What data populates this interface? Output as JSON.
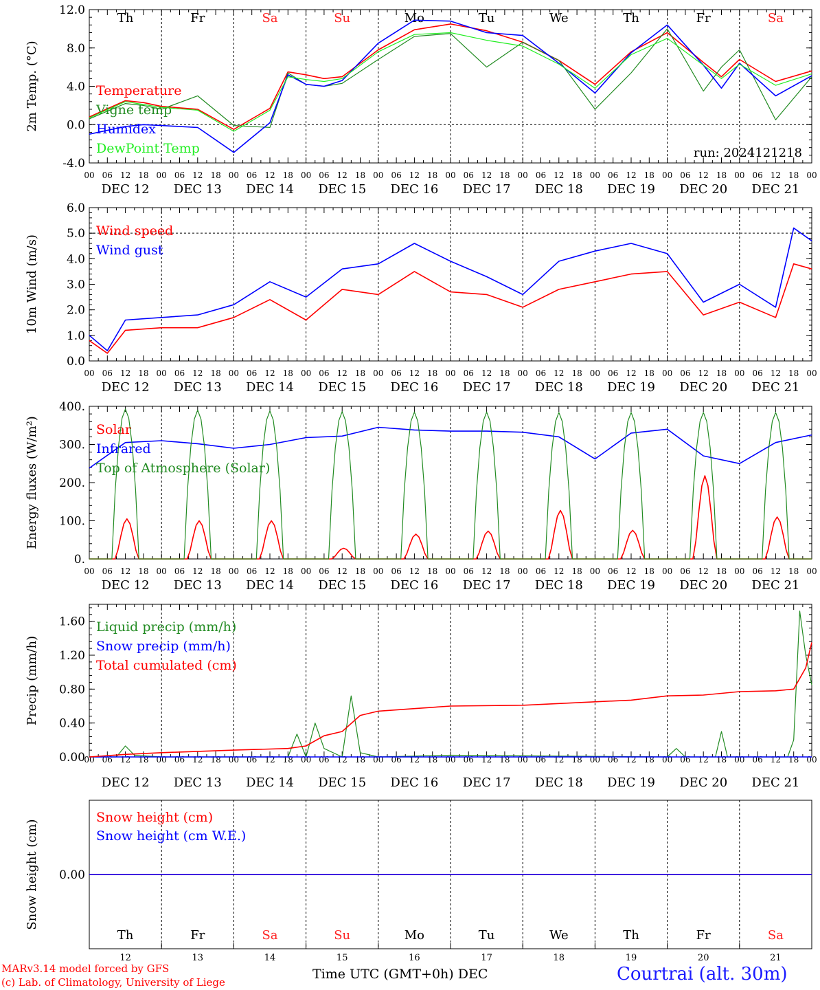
{
  "header": {
    "run_label": "run: 2024121218"
  },
  "footer": {
    "model_credit": "MARv3.14 model forced by GFS",
    "lab_credit": "(c) Lab. of Climatology, University of Liege",
    "time_axis_label": "Time UTC (GMT+0h) DEC",
    "station": "Courtrai (alt. 30m)"
  },
  "colors": {
    "red": "#ff0000",
    "blue": "#0000ff",
    "green": "#228b22",
    "light_green": "#22ee22",
    "weekend": "#ff2020"
  },
  "axis_common": {
    "hour_ticks": [
      "00",
      "06",
      "12",
      "18"
    ],
    "date_labels": [
      "DEC 12",
      "DEC 13",
      "DEC 14",
      "DEC 15",
      "DEC 16",
      "DEC 17",
      "DEC 18",
      "DEC 19",
      "DEC 20",
      "DEC 21"
    ],
    "weekdays": [
      "Th",
      "Fr",
      "Sa",
      "Su",
      "Mo",
      "Tu",
      "We",
      "Th",
      "Fr",
      "Sa"
    ],
    "weekend_flags": [
      false,
      false,
      true,
      true,
      false,
      false,
      false,
      false,
      false,
      true
    ],
    "day_numbers": [
      "12",
      "13",
      "14",
      "15",
      "16",
      "17",
      "18",
      "19",
      "20",
      "21"
    ],
    "x_range_hours": [
      0,
      240
    ]
  },
  "chart_data": [
    {
      "type": "line",
      "ylabel": "2m Temp. (°C)",
      "ylim": [
        -4,
        12
      ],
      "yticks": [
        "-4.0",
        "0.0",
        "4.0",
        "8.0",
        "12.0"
      ],
      "ytick_values": [
        -4,
        0,
        4,
        8,
        12
      ],
      "dashed_y": [
        0
      ],
      "legend_placement": "left",
      "x_hours": [
        0,
        12,
        18,
        24,
        36,
        48,
        60,
        66,
        72,
        78,
        84,
        96,
        108,
        120,
        132,
        144,
        156,
        168,
        180,
        192,
        204,
        210,
        216,
        228,
        240
      ],
      "series": [
        {
          "name": "Temperature",
          "color": "red",
          "values": [
            0.8,
            2.5,
            2.3,
            1.9,
            1.6,
            -0.5,
            1.7,
            5.5,
            5.2,
            4.8,
            5.0,
            7.8,
            9.9,
            10.5,
            9.8,
            8.6,
            6.7,
            4.2,
            7.6,
            9.6,
            6.5,
            5.0,
            6.8,
            4.5,
            5.6
          ]
        },
        {
          "name": "Vigne temp",
          "color": "green",
          "values": [
            0.6,
            2.2,
            2.0,
            1.6,
            3.0,
            -0.1,
            -0.3,
            5.4,
            4.2,
            4.0,
            4.3,
            6.8,
            9.2,
            9.5,
            6.0,
            8.6,
            6.7,
            1.6,
            5.4,
            10.0,
            3.5,
            6.0,
            7.8,
            0.5,
            5.0
          ]
        },
        {
          "name": "Humidex",
          "color": "blue",
          "values": [
            -1.0,
            -0.2,
            0.0,
            -0.1,
            -0.3,
            -2.9,
            0.2,
            5.2,
            4.2,
            4.0,
            4.6,
            8.5,
            10.9,
            10.8,
            9.6,
            9.3,
            6.4,
            3.3,
            7.5,
            10.4,
            6.2,
            3.8,
            6.4,
            3.0,
            5.1
          ]
        },
        {
          "name": "DewPoint Temp",
          "color": "light_green",
          "values": [
            0.7,
            2.4,
            2.1,
            1.8,
            1.5,
            -0.7,
            1.5,
            5.0,
            4.7,
            4.5,
            4.8,
            7.6,
            9.4,
            9.6,
            8.8,
            8.2,
            6.3,
            3.8,
            7.3,
            9.0,
            6.2,
            4.8,
            6.3,
            4.1,
            5.3
          ]
        }
      ]
    },
    {
      "type": "line",
      "ylabel": "10m Wind (m/s)",
      "ylim": [
        0,
        6
      ],
      "yticks": [
        "0.0",
        "1.0",
        "2.0",
        "3.0",
        "4.0",
        "5.0",
        "6.0"
      ],
      "ytick_values": [
        0,
        1,
        2,
        3,
        4,
        5,
        6
      ],
      "dashed_y": [
        5
      ],
      "legend_placement": "left",
      "x_hours": [
        0,
        6,
        12,
        24,
        36,
        48,
        60,
        72,
        84,
        96,
        108,
        120,
        132,
        144,
        156,
        168,
        180,
        192,
        204,
        216,
        228,
        234,
        240
      ],
      "series": [
        {
          "name": "Wind speed",
          "color": "red",
          "values": [
            0.8,
            0.3,
            1.2,
            1.3,
            1.3,
            1.7,
            2.4,
            1.6,
            2.8,
            2.6,
            3.5,
            2.7,
            2.6,
            2.1,
            2.8,
            3.1,
            3.4,
            3.5,
            1.8,
            2.3,
            1.7,
            3.8,
            3.6
          ]
        },
        {
          "name": "Wind gust",
          "color": "blue",
          "values": [
            1.0,
            0.4,
            1.6,
            1.7,
            1.8,
            2.2,
            3.1,
            2.5,
            3.6,
            3.8,
            4.6,
            3.9,
            3.3,
            2.6,
            3.9,
            4.3,
            4.6,
            4.2,
            2.3,
            3.0,
            2.1,
            5.2,
            4.7
          ]
        }
      ]
    },
    {
      "type": "line",
      "ylabel": "Energy fluxes (W/m²)",
      "ylim": [
        0,
        400
      ],
      "yticks": [
        "0.",
        "100.",
        "200.",
        "300.",
        "400."
      ],
      "ytick_values": [
        0,
        100,
        200,
        300,
        400
      ],
      "dashed_y": [],
      "legend_placement": "left",
      "daily_peaks": {
        "solar": [
          105,
          100,
          100,
          28,
          65,
          73,
          127,
          75,
          218,
          110
        ],
        "toa_solar": [
          393,
          390,
          388,
          386,
          385,
          385,
          384,
          384,
          384,
          384
        ]
      },
      "series": [
        {
          "name": "Solar",
          "color": "red",
          "x_hours": [],
          "values": []
        },
        {
          "name": "Infrared",
          "color": "blue",
          "x_hours": [
            0,
            12,
            24,
            36,
            48,
            60,
            72,
            84,
            96,
            108,
            120,
            132,
            144,
            156,
            168,
            180,
            192,
            204,
            216,
            228,
            240
          ],
          "values": [
            238,
            305,
            310,
            302,
            290,
            300,
            318,
            322,
            345,
            338,
            335,
            335,
            332,
            320,
            262,
            330,
            340,
            270,
            250,
            305,
            325
          ]
        },
        {
          "name": "Top of Atmosphere (Solar)",
          "color": "green",
          "x_hours": [],
          "values": []
        }
      ]
    },
    {
      "type": "line",
      "ylabel": "Precip (mm/h)",
      "ylim": [
        0,
        1.8
      ],
      "yticks": [
        "0.00",
        "0.40",
        "0.80",
        "1.20",
        "1.60"
      ],
      "ytick_values": [
        0,
        0.4,
        0.8,
        1.2,
        1.6
      ],
      "dashed_y": [],
      "legend_placement": "left",
      "series": [
        {
          "name": "Liquid precip (mm/h)",
          "color": "green",
          "x_hours": [
            0,
            9,
            12,
            15,
            24,
            60,
            66,
            69,
            72,
            75,
            78,
            84,
            87,
            90,
            96,
            120,
            192,
            195,
            198,
            208,
            210,
            212,
            232,
            234,
            236,
            238,
            240
          ],
          "values": [
            0,
            0,
            0.13,
            0.02,
            0,
            0,
            0,
            0.27,
            0,
            0.4,
            0.1,
            0,
            0.72,
            0.05,
            0,
            0.02,
            0,
            0.1,
            0,
            0,
            0.3,
            0,
            0,
            0.2,
            1.72,
            1.2,
            0.85
          ]
        },
        {
          "name": "Snow precip (mm/h)",
          "color": "blue",
          "x_hours": [
            0,
            240
          ],
          "values": [
            0,
            0
          ]
        },
        {
          "name": "Total cumulated (cm)",
          "color": "red",
          "x_hours": [
            0,
            12,
            24,
            48,
            66,
            72,
            78,
            84,
            90,
            96,
            108,
            120,
            144,
            168,
            180,
            192,
            204,
            216,
            228,
            234,
            238,
            240
          ],
          "values": [
            0,
            0.03,
            0.05,
            0.08,
            0.1,
            0.13,
            0.25,
            0.3,
            0.49,
            0.54,
            0.57,
            0.6,
            0.61,
            0.65,
            0.67,
            0.72,
            0.73,
            0.77,
            0.78,
            0.8,
            1.05,
            1.35
          ]
        }
      ]
    },
    {
      "type": "line",
      "ylabel": "Snow height (cm)",
      "ylim": [
        -1,
        1
      ],
      "yticks": [
        "0.00"
      ],
      "ytick_values": [
        0
      ],
      "dashed_y": [],
      "legend_placement": "left",
      "x_hours": [
        0,
        240
      ],
      "series": [
        {
          "name": "Snow height (cm)",
          "color": "red",
          "values": [
            0,
            0
          ]
        },
        {
          "name": "Snow height (cm W.E.)",
          "color": "blue",
          "values": [
            0,
            0
          ]
        }
      ]
    }
  ]
}
